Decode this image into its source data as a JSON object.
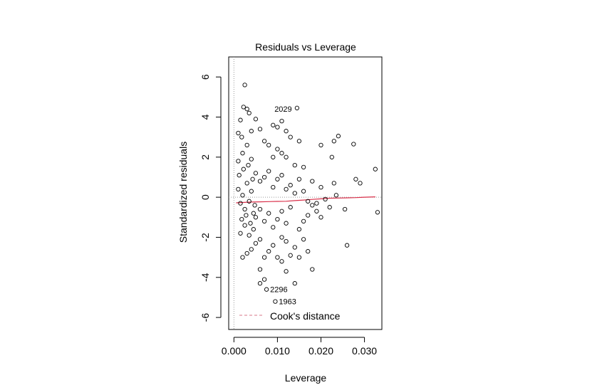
{
  "chart_data": {
    "type": "scatter",
    "title": "Residuals vs Leverage",
    "xlabel": "Leverage",
    "ylabel": "Standardized residuals",
    "xlim": [
      -0.0012,
      0.034
    ],
    "ylim": [
      -6.6,
      7.0
    ],
    "x_ticks": [
      0.0,
      0.01,
      0.02,
      0.03
    ],
    "x_tick_labels": [
      "0.000",
      "0.010",
      "0.020",
      "0.030"
    ],
    "y_ticks": [
      -6,
      -4,
      -2,
      0,
      2,
      4,
      6
    ],
    "y_tick_labels": [
      "-6",
      "-4",
      "-2",
      "0",
      "2",
      "4",
      "6"
    ],
    "reference_lines": {
      "x": 0,
      "y": 0,
      "style": "dotted",
      "color": "#999999"
    },
    "legend": {
      "position": "bottom",
      "entries": [
        {
          "label": "Cook's distance",
          "color": "#d9778a",
          "style": "dashed"
        }
      ]
    },
    "smooth_line": {
      "color": "#d9304a",
      "x": [
        0.0005,
        0.002,
        0.004,
        0.006,
        0.008,
        0.01,
        0.012,
        0.014,
        0.016,
        0.018,
        0.02,
        0.022,
        0.024,
        0.026,
        0.028,
        0.03,
        0.0325
      ],
      "y": [
        -0.28,
        -0.26,
        -0.24,
        -0.23,
        -0.22,
        -0.21,
        -0.2,
        -0.17,
        -0.14,
        -0.11,
        -0.08,
        -0.05,
        -0.04,
        -0.03,
        -0.02,
        0.0,
        0.02
      ]
    },
    "labeled_points": [
      {
        "id": "2029",
        "x": 0.0085,
        "y": 4.4
      },
      {
        "id": "2296",
        "x": 0.0075,
        "y": -4.6
      },
      {
        "id": "1963",
        "x": 0.0095,
        "y": -5.2
      }
    ],
    "points": [
      {
        "x": 0.0025,
        "y": 5.6
      },
      {
        "x": 0.0022,
        "y": 4.5
      },
      {
        "x": 0.003,
        "y": 4.4
      },
      {
        "x": 0.0035,
        "y": 4.2
      },
      {
        "x": 0.0015,
        "y": 3.85
      },
      {
        "x": 0.005,
        "y": 3.9
      },
      {
        "x": 0.011,
        "y": 3.8
      },
      {
        "x": 0.0145,
        "y": 4.45
      },
      {
        "x": 0.01,
        "y": 3.5
      },
      {
        "x": 0.009,
        "y": 3.6
      },
      {
        "x": 0.012,
        "y": 3.3
      },
      {
        "x": 0.001,
        "y": 3.2
      },
      {
        "x": 0.0018,
        "y": 3.0
      },
      {
        "x": 0.004,
        "y": 3.3
      },
      {
        "x": 0.006,
        "y": 3.4
      },
      {
        "x": 0.007,
        "y": 2.8
      },
      {
        "x": 0.008,
        "y": 2.6
      },
      {
        "x": 0.013,
        "y": 3.0
      },
      {
        "x": 0.015,
        "y": 2.8
      },
      {
        "x": 0.01,
        "y": 2.4
      },
      {
        "x": 0.011,
        "y": 2.2
      },
      {
        "x": 0.012,
        "y": 2.0
      },
      {
        "x": 0.009,
        "y": 2.0
      },
      {
        "x": 0.014,
        "y": 1.6
      },
      {
        "x": 0.016,
        "y": 1.5
      },
      {
        "x": 0.02,
        "y": 2.6
      },
      {
        "x": 0.0225,
        "y": 2.0
      },
      {
        "x": 0.023,
        "y": 2.8
      },
      {
        "x": 0.024,
        "y": 3.05
      },
      {
        "x": 0.0275,
        "y": 2.65
      },
      {
        "x": 0.018,
        "y": 0.8
      },
      {
        "x": 0.02,
        "y": 0.5
      },
      {
        "x": 0.021,
        "y": -0.1
      },
      {
        "x": 0.0235,
        "y": 0.1
      },
      {
        "x": 0.023,
        "y": 0.7
      },
      {
        "x": 0.0255,
        "y": -0.6
      },
      {
        "x": 0.028,
        "y": 0.9
      },
      {
        "x": 0.029,
        "y": 0.7
      },
      {
        "x": 0.0325,
        "y": 1.4
      },
      {
        "x": 0.033,
        "y": -0.75
      },
      {
        "x": 0.019,
        "y": -0.3
      },
      {
        "x": 0.017,
        "y": -0.9
      },
      {
        "x": 0.016,
        "y": -1.2
      },
      {
        "x": 0.015,
        "y": -1.6
      },
      {
        "x": 0.019,
        "y": -0.7
      },
      {
        "x": 0.02,
        "y": -1.0
      },
      {
        "x": 0.022,
        "y": -0.5
      },
      {
        "x": 0.026,
        "y": -2.4
      },
      {
        "x": 0.017,
        "y": -2.7
      },
      {
        "x": 0.014,
        "y": -2.5
      },
      {
        "x": 0.013,
        "y": -2.9
      },
      {
        "x": 0.012,
        "y": -2.2
      },
      {
        "x": 0.011,
        "y": -2.0
      },
      {
        "x": 0.01,
        "y": -3.0
      },
      {
        "x": 0.009,
        "y": -2.4
      },
      {
        "x": 0.008,
        "y": -2.7
      },
      {
        "x": 0.006,
        "y": -2.1
      },
      {
        "x": 0.005,
        "y": -2.3
      },
      {
        "x": 0.004,
        "y": -2.6
      },
      {
        "x": 0.003,
        "y": -2.8
      },
      {
        "x": 0.002,
        "y": -3.0
      },
      {
        "x": 0.007,
        "y": -3.0
      },
      {
        "x": 0.012,
        "y": -3.7
      },
      {
        "x": 0.018,
        "y": -3.6
      },
      {
        "x": 0.011,
        "y": -3.2
      },
      {
        "x": 0.006,
        "y": -3.6
      },
      {
        "x": 0.007,
        "y": -4.1
      },
      {
        "x": 0.006,
        "y": -4.3
      },
      {
        "x": 0.0075,
        "y": -4.6
      },
      {
        "x": 0.0095,
        "y": -5.2
      },
      {
        "x": 0.014,
        "y": -4.3
      },
      {
        "x": 0.015,
        "y": -3.0
      },
      {
        "x": 0.016,
        "y": -2.1
      },
      {
        "x": 0.005,
        "y": 1.2
      },
      {
        "x": 0.006,
        "y": 0.8
      },
      {
        "x": 0.007,
        "y": 1.0
      },
      {
        "x": 0.008,
        "y": 1.3
      },
      {
        "x": 0.009,
        "y": 0.5
      },
      {
        "x": 0.01,
        "y": 0.9
      },
      {
        "x": 0.011,
        "y": 1.1
      },
      {
        "x": 0.012,
        "y": 0.4
      },
      {
        "x": 0.013,
        "y": 0.6
      },
      {
        "x": 0.014,
        "y": 0.2
      },
      {
        "x": 0.015,
        "y": 0.9
      },
      {
        "x": 0.016,
        "y": 0.3
      },
      {
        "x": 0.017,
        "y": -0.2
      },
      {
        "x": 0.018,
        "y": -0.4
      },
      {
        "x": 0.005,
        "y": -1.0
      },
      {
        "x": 0.006,
        "y": -0.6
      },
      {
        "x": 0.007,
        "y": -1.2
      },
      {
        "x": 0.008,
        "y": -0.8
      },
      {
        "x": 0.009,
        "y": -1.5
      },
      {
        "x": 0.01,
        "y": -1.1
      },
      {
        "x": 0.011,
        "y": -0.7
      },
      {
        "x": 0.012,
        "y": -1.3
      },
      {
        "x": 0.013,
        "y": -0.5
      },
      {
        "x": 0.001,
        "y": 1.8
      },
      {
        "x": 0.002,
        "y": 2.2
      },
      {
        "x": 0.003,
        "y": 2.6
      },
      {
        "x": 0.004,
        "y": 1.9
      },
      {
        "x": 0.0015,
        "y": -1.8
      },
      {
        "x": 0.0025,
        "y": -1.4
      },
      {
        "x": 0.0035,
        "y": -1.9
      },
      {
        "x": 0.0045,
        "y": -1.6
      },
      {
        "x": 0.001,
        "y": 0.4
      },
      {
        "x": 0.0015,
        "y": -0.3
      },
      {
        "x": 0.002,
        "y": 0.1
      },
      {
        "x": 0.0025,
        "y": -0.6
      },
      {
        "x": 0.003,
        "y": 0.7
      },
      {
        "x": 0.0035,
        "y": -0.2
      },
      {
        "x": 0.004,
        "y": 0.3
      },
      {
        "x": 0.0045,
        "y": -0.8
      },
      {
        "x": 0.0012,
        "y": 1.1
      },
      {
        "x": 0.0018,
        "y": -1.1
      },
      {
        "x": 0.0022,
        "y": 1.4
      },
      {
        "x": 0.0028,
        "y": -0.9
      },
      {
        "x": 0.0033,
        "y": 1.6
      },
      {
        "x": 0.0038,
        "y": -1.3
      },
      {
        "x": 0.0043,
        "y": 0.9
      },
      {
        "x": 0.0048,
        "y": -0.4
      }
    ]
  }
}
